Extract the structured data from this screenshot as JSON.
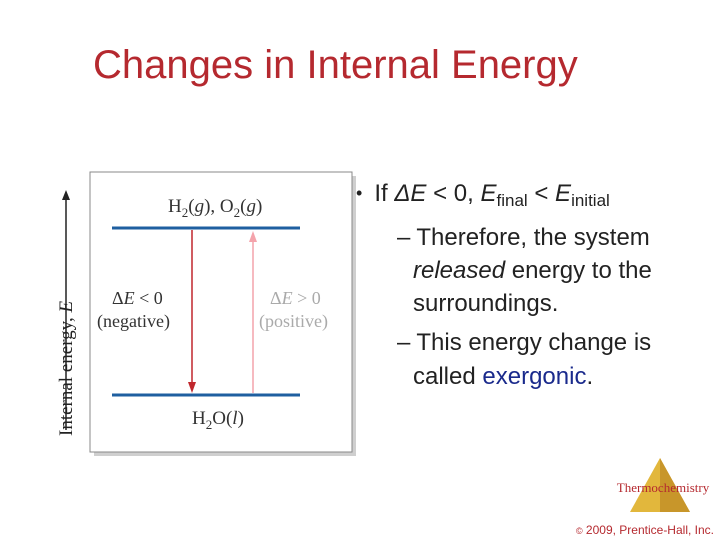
{
  "title": "Changes in Internal Energy",
  "bullet": {
    "marker": "•",
    "segments": [
      "If ",
      "ΔE",
      " < 0, ",
      "E",
      "final",
      " < ",
      "E",
      "initial"
    ]
  },
  "sub_bullets": [
    {
      "marker": "–",
      "lines": [
        [
          "Therefore, the system"
        ],
        [
          "released",
          " energy to the"
        ],
        [
          "surroundings."
        ]
      ]
    },
    {
      "marker": "–",
      "lines": [
        [
          "This energy change is"
        ],
        [
          "called ",
          "exergonic",
          "."
        ]
      ]
    }
  ],
  "diagram": {
    "axis_label": [
      "Internal energy, ",
      "E"
    ],
    "top_level": [
      "H",
      "2",
      "(",
      "g",
      "), O",
      "2",
      "(",
      "g",
      ")"
    ],
    "left_label": [
      [
        "Δ",
        "E",
        " < 0"
      ],
      [
        "(negative)"
      ]
    ],
    "right_label": [
      [
        "Δ",
        "E",
        " > 0"
      ],
      [
        "(positive)"
      ]
    ],
    "bottom_level": [
      "H",
      "2",
      "O(",
      "l",
      ")"
    ]
  },
  "logo": "Thermochemistry",
  "footer": [
    "©",
    " 2009, Prentice-Hall, Inc."
  ]
}
